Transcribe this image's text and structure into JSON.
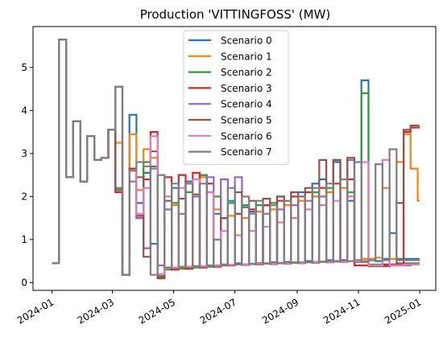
{
  "chart_data": {
    "type": "line",
    "step": true,
    "title": "Production 'VITTINGFOSS' (MW)",
    "xlabel": "",
    "ylabel": "",
    "xlim": [
      "2023-12-13",
      "2025-01-17"
    ],
    "ylim": [
      -0.18,
      5.95
    ],
    "xticks": [
      "2024-01",
      "2024-03",
      "2024-05",
      "2024-07",
      "2024-09",
      "2024-11",
      "2025-01"
    ],
    "yticks": [
      0,
      1,
      2,
      3,
      4,
      5
    ],
    "grid": false,
    "legend": {
      "position": "top-center"
    },
    "x": [
      "2024-01-01",
      "2024-01-08",
      "2024-01-15",
      "2024-01-22",
      "2024-01-29",
      "2024-02-05",
      "2024-02-12",
      "2024-02-19",
      "2024-02-26",
      "2024-03-04",
      "2024-03-11",
      "2024-03-18",
      "2024-03-25",
      "2024-04-01",
      "2024-04-08",
      "2024-04-15",
      "2024-04-22",
      "2024-04-29",
      "2024-05-06",
      "2024-05-13",
      "2024-05-20",
      "2024-05-27",
      "2024-06-03",
      "2024-06-10",
      "2024-06-17",
      "2024-06-24",
      "2024-07-01",
      "2024-07-08",
      "2024-07-15",
      "2024-07-22",
      "2024-07-29",
      "2024-08-05",
      "2024-08-12",
      "2024-08-19",
      "2024-08-26",
      "2024-09-02",
      "2024-09-09",
      "2024-09-16",
      "2024-09-23",
      "2024-09-30",
      "2024-10-07",
      "2024-10-14",
      "2024-10-21",
      "2024-10-28",
      "2024-11-04",
      "2024-11-11",
      "2024-11-18",
      "2024-11-25",
      "2024-12-02",
      "2024-12-09",
      "2024-12-16",
      "2024-12-23",
      "2024-12-30"
    ],
    "series": [
      {
        "name": "Scenario 0",
        "color": "#1f77b4",
        "values": [
          0.45,
          5.65,
          2.45,
          3.75,
          2.35,
          3.4,
          2.85,
          2.9,
          3.55,
          4.55,
          0.18,
          3.9,
          1.85,
          2.55,
          0.9,
          0.15,
          0.35,
          2.2,
          0.35,
          2.35,
          0.38,
          2.5,
          0.4,
          1.6,
          0.42,
          1.9,
          0.45,
          1.75,
          1.65,
          0.45,
          1.8,
          0.47,
          2.0,
          0.48,
          2.1,
          2.1,
          0.5,
          2.3,
          2.4,
          0.52,
          2.8,
          0.52,
          1.9,
          0.52,
          4.7,
          0.52,
          0.5,
          0.55,
          1.15,
          0.55,
          0.55,
          0.55,
          0.55
        ]
      },
      {
        "name": "Scenario 1",
        "color": "#ff7f0e",
        "values": [
          0.45,
          5.65,
          2.45,
          3.75,
          2.35,
          3.4,
          2.85,
          2.9,
          3.55,
          3.25,
          0.18,
          3.45,
          2.15,
          3.1,
          2.9,
          0.12,
          0.35,
          1.8,
          0.33,
          2.3,
          0.36,
          2.45,
          0.38,
          1.7,
          0.4,
          1.55,
          0.42,
          1.5,
          0.43,
          1.65,
          0.44,
          1.7,
          0.45,
          1.8,
          0.46,
          1.9,
          0.47,
          2.0,
          0.48,
          2.1,
          0.49,
          2.2,
          0.5,
          0.5,
          0.55,
          0.55,
          0.58,
          2.2,
          0.55,
          2.8,
          3.45,
          2.65,
          1.9
        ]
      },
      {
        "name": "Scenario 2",
        "color": "#2ca02c",
        "values": [
          0.45,
          5.65,
          2.45,
          3.75,
          2.35,
          3.4,
          2.85,
          2.9,
          3.55,
          2.2,
          0.18,
          2.6,
          1.5,
          2.8,
          2.7,
          0.15,
          0.3,
          1.85,
          0.32,
          2.1,
          0.35,
          2.5,
          0.37,
          2.0,
          0.4,
          1.85,
          0.42,
          1.8,
          0.44,
          1.8,
          0.45,
          1.85,
          0.46,
          1.9,
          0.47,
          2.0,
          0.48,
          2.1,
          0.49,
          2.2,
          0.5,
          0.5,
          2.1,
          0.5,
          4.4,
          0.42,
          0.42,
          0.42,
          0.42,
          0.45,
          0.45,
          0.45,
          0.45
        ]
      },
      {
        "name": "Scenario 3",
        "color": "#d62728",
        "values": [
          0.45,
          5.65,
          2.45,
          3.75,
          2.35,
          3.4,
          2.85,
          2.9,
          3.55,
          2.1,
          0.18,
          2.65,
          1.55,
          2.4,
          3.5,
          0.1,
          2.45,
          0.3,
          2.5,
          0.32,
          2.55,
          0.35,
          2.3,
          0.37,
          1.5,
          0.4,
          1.6,
          0.42,
          1.7,
          0.44,
          1.8,
          0.45,
          1.9,
          0.46,
          2.0,
          0.47,
          2.1,
          0.48,
          2.2,
          0.49,
          2.3,
          0.5,
          2.4,
          0.4,
          0.4,
          0.4,
          0.4,
          0.42,
          0.42,
          0.42,
          3.5,
          3.6,
          3.6
        ]
      },
      {
        "name": "Scenario 4",
        "color": "#9467bd",
        "values": [
          0.45,
          5.65,
          2.45,
          3.75,
          2.35,
          3.4,
          2.85,
          2.9,
          3.55,
          2.15,
          0.18,
          2.35,
          1.5,
          0.8,
          2.65,
          0.4,
          1.7,
          0.35,
          1.6,
          0.37,
          2.0,
          0.38,
          2.45,
          0.4,
          2.4,
          0.41,
          2.45,
          0.42,
          1.6,
          0.43,
          1.6,
          0.44,
          1.7,
          0.45,
          1.8,
          0.46,
          1.9,
          0.47,
          2.0,
          0.48,
          2.85,
          0.49,
          2.85,
          0.5,
          0.5,
          0.38,
          0.38,
          0.38,
          0.4,
          0.4,
          0.4,
          0.42,
          0.42
        ]
      },
      {
        "name": "Scenario 5",
        "color": "#8c564b",
        "values": [
          0.45,
          5.65,
          2.45,
          3.75,
          2.35,
          3.4,
          2.85,
          2.9,
          3.55,
          2.15,
          0.18,
          2.6,
          2.45,
          0.6,
          3.05,
          0.12,
          1.9,
          0.32,
          1.95,
          0.34,
          2.05,
          0.36,
          2.1,
          0.38,
          1.5,
          0.4,
          2.1,
          0.41,
          1.9,
          0.42,
          1.95,
          0.43,
          2.0,
          0.44,
          2.1,
          0.45,
          2.2,
          0.46,
          2.85,
          0.47,
          2.85,
          0.48,
          2.9,
          0.48,
          0.48,
          0.38,
          0.38,
          0.38,
          0.4,
          1.85,
          3.55,
          3.65,
          3.65
        ]
      },
      {
        "name": "Scenario 6",
        "color": "#e377c2",
        "values": [
          0.45,
          5.65,
          2.45,
          3.75,
          2.35,
          3.4,
          2.85,
          2.9,
          3.55,
          4.55,
          0.18,
          2.6,
          1.6,
          2.2,
          3.4,
          0.2,
          2.0,
          0.35,
          2.2,
          0.37,
          2.4,
          0.38,
          2.1,
          0.4,
          1.2,
          0.41,
          1.1,
          0.42,
          1.2,
          0.43,
          1.3,
          0.44,
          1.4,
          0.45,
          1.5,
          0.46,
          1.7,
          0.47,
          1.8,
          0.48,
          1.9,
          0.49,
          2.0,
          0.5,
          2.8,
          0.4,
          0.4,
          2.85,
          0.4,
          0.4,
          0.42,
          0.42,
          0.42
        ]
      },
      {
        "name": "Scenario 7",
        "color": "#7f7f7f",
        "values": [
          0.45,
          5.65,
          2.45,
          3.75,
          2.35,
          3.4,
          2.85,
          2.9,
          3.55,
          4.55,
          0.18,
          2.6,
          2.8,
          2.7,
          0.18,
          2.5,
          0.35,
          2.3,
          0.37,
          2.3,
          0.38,
          2.3,
          0.4,
          1.0,
          0.41,
          2.2,
          0.42,
          2.0,
          0.43,
          1.9,
          0.44,
          1.8,
          0.45,
          1.9,
          0.46,
          2.0,
          0.47,
          2.2,
          0.48,
          2.3,
          0.49,
          2.4,
          0.5,
          2.8,
          0.5,
          0.52,
          2.75,
          0.52,
          3.1,
          0.52,
          0.52,
          0.52,
          0.52
        ]
      }
    ]
  }
}
